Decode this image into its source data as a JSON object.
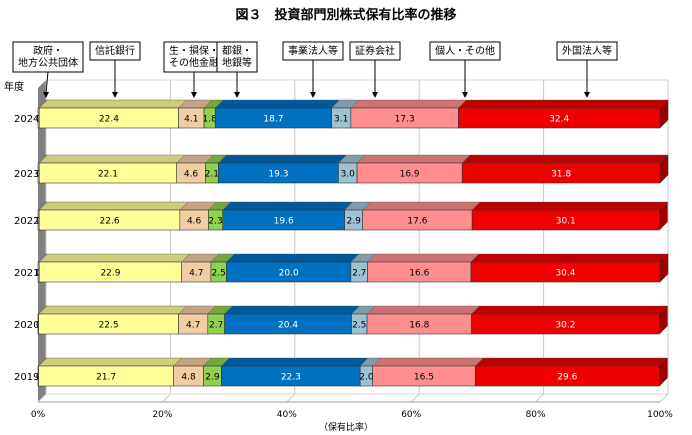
{
  "chart_data": {
    "type": "bar",
    "orientation": "horizontal",
    "stacked": true,
    "title": "図３　投資部門別株式保有比率の推移",
    "xlabel": "（保有比率）",
    "ylabel": "年度",
    "xlim": [
      0,
      100
    ],
    "x_ticks": [
      "0%",
      "20%",
      "40%",
      "60%",
      "80%",
      "100%"
    ],
    "grid": true,
    "categories": [
      "2024",
      "2023",
      "2022",
      "2021",
      "2020",
      "2019"
    ],
    "series": [
      {
        "name": "政府・地方公共団体",
        "legend_lines": [
          "政府・",
          "地方公共団体"
        ],
        "color": "#bfbfbf",
        "values": [
          0.2,
          0.2,
          0.2,
          0.2,
          0.1,
          0.1
        ]
      },
      {
        "name": "信託銀行",
        "legend_lines": [
          "信託銀行"
        ],
        "color": "#ffff99",
        "values": [
          22.4,
          22.1,
          22.6,
          22.9,
          22.5,
          21.7
        ]
      },
      {
        "name": "生・損保・その他金融",
        "legend_lines": [
          "生・損保・",
          "その他金融"
        ],
        "color": "#f2cda4",
        "values": [
          4.1,
          4.6,
          4.6,
          4.7,
          4.7,
          4.8
        ]
      },
      {
        "name": "都銀・地銀等",
        "legend_lines": [
          "都銀・",
          "地銀等"
        ],
        "color": "#92d050",
        "values": [
          1.8,
          2.1,
          2.3,
          2.5,
          2.7,
          2.9
        ]
      },
      {
        "name": "事業法人等",
        "legend_lines": [
          "事業法人等"
        ],
        "color": "#0070c0",
        "values": [
          18.7,
          19.3,
          19.6,
          20.0,
          20.4,
          22.3
        ]
      },
      {
        "name": "証券会社",
        "legend_lines": [
          "証券会社"
        ],
        "color": "#9dc3d3",
        "values": [
          3.1,
          3.0,
          2.9,
          2.7,
          2.5,
          2.0
        ]
      },
      {
        "name": "個人・その他",
        "legend_lines": [
          "個人・その他"
        ],
        "color": "#ff8f8f",
        "values": [
          17.3,
          16.9,
          17.6,
          16.6,
          16.8,
          16.5
        ]
      },
      {
        "name": "外国法人等",
        "legend_lines": [
          "外国法人等"
        ],
        "color": "#ee0000",
        "values": [
          32.4,
          31.8,
          30.1,
          30.4,
          30.2,
          29.6
        ]
      }
    ]
  }
}
